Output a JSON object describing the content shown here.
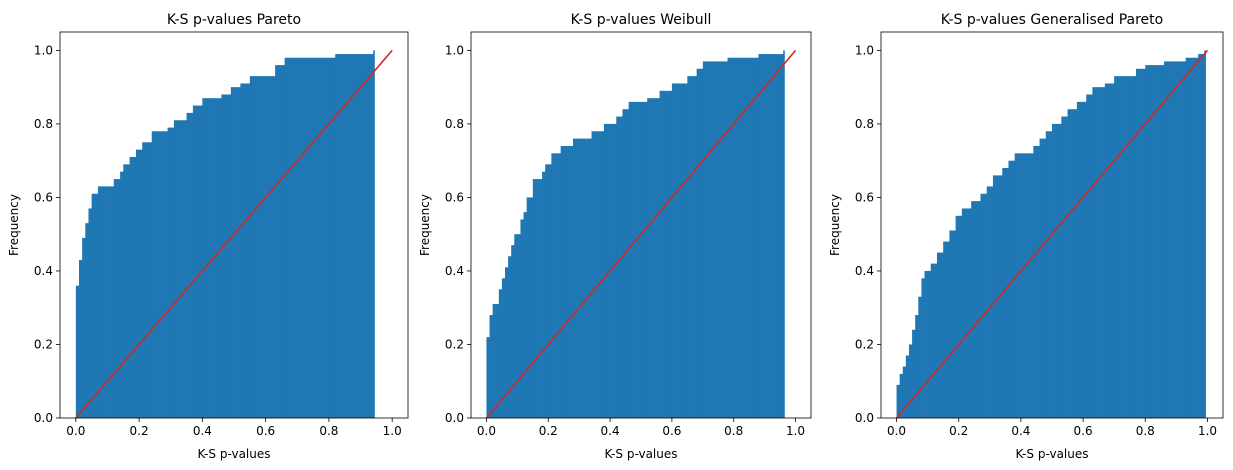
{
  "colors": {
    "bars": "#1f77b4",
    "reference_line": "#d62728"
  },
  "chart_data": [
    {
      "type": "bar",
      "title": "K-S p-values Pareto",
      "xlabel": "K-S p-values",
      "ylabel": "Frequency",
      "xlim": [
        -0.05,
        1.05
      ],
      "ylim": [
        0,
        1.05
      ],
      "xticks": [
        "0.0",
        "0.2",
        "0.4",
        "0.6",
        "0.8",
        "1.0"
      ],
      "yticks": [
        "0.0",
        "0.2",
        "0.4",
        "0.6",
        "0.8",
        "1.0"
      ],
      "grid": false,
      "cumulative_steps": [
        [
          0.0,
          0.36
        ],
        [
          0.01,
          0.43
        ],
        [
          0.02,
          0.49
        ],
        [
          0.03,
          0.53
        ],
        [
          0.04,
          0.57
        ],
        [
          0.05,
          0.61
        ],
        [
          0.07,
          0.63
        ],
        [
          0.12,
          0.65
        ],
        [
          0.14,
          0.67
        ],
        [
          0.15,
          0.69
        ],
        [
          0.17,
          0.71
        ],
        [
          0.19,
          0.73
        ],
        [
          0.21,
          0.75
        ],
        [
          0.24,
          0.78
        ],
        [
          0.29,
          0.79
        ],
        [
          0.31,
          0.81
        ],
        [
          0.35,
          0.83
        ],
        [
          0.37,
          0.85
        ],
        [
          0.4,
          0.87
        ],
        [
          0.46,
          0.88
        ],
        [
          0.49,
          0.9
        ],
        [
          0.52,
          0.91
        ],
        [
          0.55,
          0.93
        ],
        [
          0.63,
          0.96
        ],
        [
          0.66,
          0.98
        ],
        [
          0.82,
          0.99
        ],
        [
          0.94,
          1.0
        ]
      ],
      "bars_end": 0.94,
      "reference_line": [
        [
          0,
          0
        ],
        [
          1,
          1
        ]
      ]
    },
    {
      "type": "bar",
      "title": "K-S p-values Weibull",
      "xlabel": "K-S p-values",
      "ylabel": "Frequency",
      "xlim": [
        -0.05,
        1.05
      ],
      "ylim": [
        0,
        1.05
      ],
      "xticks": [
        "0.0",
        "0.2",
        "0.4",
        "0.6",
        "0.8",
        "1.0"
      ],
      "yticks": [
        "0.0",
        "0.2",
        "0.4",
        "0.6",
        "0.8",
        "1.0"
      ],
      "grid": false,
      "cumulative_steps": [
        [
          0.0,
          0.22
        ],
        [
          0.01,
          0.28
        ],
        [
          0.02,
          0.31
        ],
        [
          0.04,
          0.35
        ],
        [
          0.05,
          0.38
        ],
        [
          0.06,
          0.41
        ],
        [
          0.07,
          0.44
        ],
        [
          0.08,
          0.47
        ],
        [
          0.09,
          0.5
        ],
        [
          0.11,
          0.54
        ],
        [
          0.12,
          0.56
        ],
        [
          0.13,
          0.6
        ],
        [
          0.15,
          0.65
        ],
        [
          0.18,
          0.67
        ],
        [
          0.19,
          0.69
        ],
        [
          0.21,
          0.72
        ],
        [
          0.24,
          0.74
        ],
        [
          0.28,
          0.76
        ],
        [
          0.34,
          0.78
        ],
        [
          0.38,
          0.8
        ],
        [
          0.42,
          0.82
        ],
        [
          0.44,
          0.84
        ],
        [
          0.46,
          0.86
        ],
        [
          0.52,
          0.87
        ],
        [
          0.56,
          0.89
        ],
        [
          0.6,
          0.91
        ],
        [
          0.65,
          0.93
        ],
        [
          0.68,
          0.95
        ],
        [
          0.7,
          0.97
        ],
        [
          0.78,
          0.98
        ],
        [
          0.88,
          0.99
        ],
        [
          0.96,
          1.0
        ]
      ],
      "bars_end": 0.96,
      "reference_line": [
        [
          0,
          0
        ],
        [
          1,
          1
        ]
      ]
    },
    {
      "type": "bar",
      "title": "K-S p-values Generalised Pareto",
      "xlabel": "K-S p-values",
      "ylabel": "Frequency",
      "xlim": [
        -0.05,
        1.05
      ],
      "ylim": [
        0,
        1.05
      ],
      "xticks": [
        "0.0",
        "0.2",
        "0.4",
        "0.6",
        "0.8",
        "1.0"
      ],
      "yticks": [
        "0.0",
        "0.2",
        "0.4",
        "0.6",
        "0.8",
        "1.0"
      ],
      "grid": false,
      "cumulative_steps": [
        [
          0.0,
          0.09
        ],
        [
          0.01,
          0.12
        ],
        [
          0.02,
          0.14
        ],
        [
          0.03,
          0.17
        ],
        [
          0.04,
          0.2
        ],
        [
          0.05,
          0.24
        ],
        [
          0.06,
          0.28
        ],
        [
          0.07,
          0.33
        ],
        [
          0.08,
          0.38
        ],
        [
          0.09,
          0.4
        ],
        [
          0.11,
          0.42
        ],
        [
          0.13,
          0.45
        ],
        [
          0.15,
          0.48
        ],
        [
          0.17,
          0.51
        ],
        [
          0.19,
          0.55
        ],
        [
          0.21,
          0.57
        ],
        [
          0.24,
          0.59
        ],
        [
          0.27,
          0.61
        ],
        [
          0.29,
          0.63
        ],
        [
          0.31,
          0.66
        ],
        [
          0.34,
          0.68
        ],
        [
          0.36,
          0.7
        ],
        [
          0.38,
          0.72
        ],
        [
          0.44,
          0.74
        ],
        [
          0.46,
          0.76
        ],
        [
          0.48,
          0.78
        ],
        [
          0.5,
          0.8
        ],
        [
          0.53,
          0.82
        ],
        [
          0.55,
          0.84
        ],
        [
          0.58,
          0.86
        ],
        [
          0.61,
          0.88
        ],
        [
          0.63,
          0.9
        ],
        [
          0.67,
          0.91
        ],
        [
          0.7,
          0.93
        ],
        [
          0.77,
          0.95
        ],
        [
          0.8,
          0.96
        ],
        [
          0.86,
          0.97
        ],
        [
          0.93,
          0.98
        ],
        [
          0.97,
          0.99
        ],
        [
          0.99,
          1.0
        ]
      ],
      "bars_end": 0.99,
      "reference_line": [
        [
          0,
          0
        ],
        [
          1,
          1
        ]
      ]
    }
  ]
}
